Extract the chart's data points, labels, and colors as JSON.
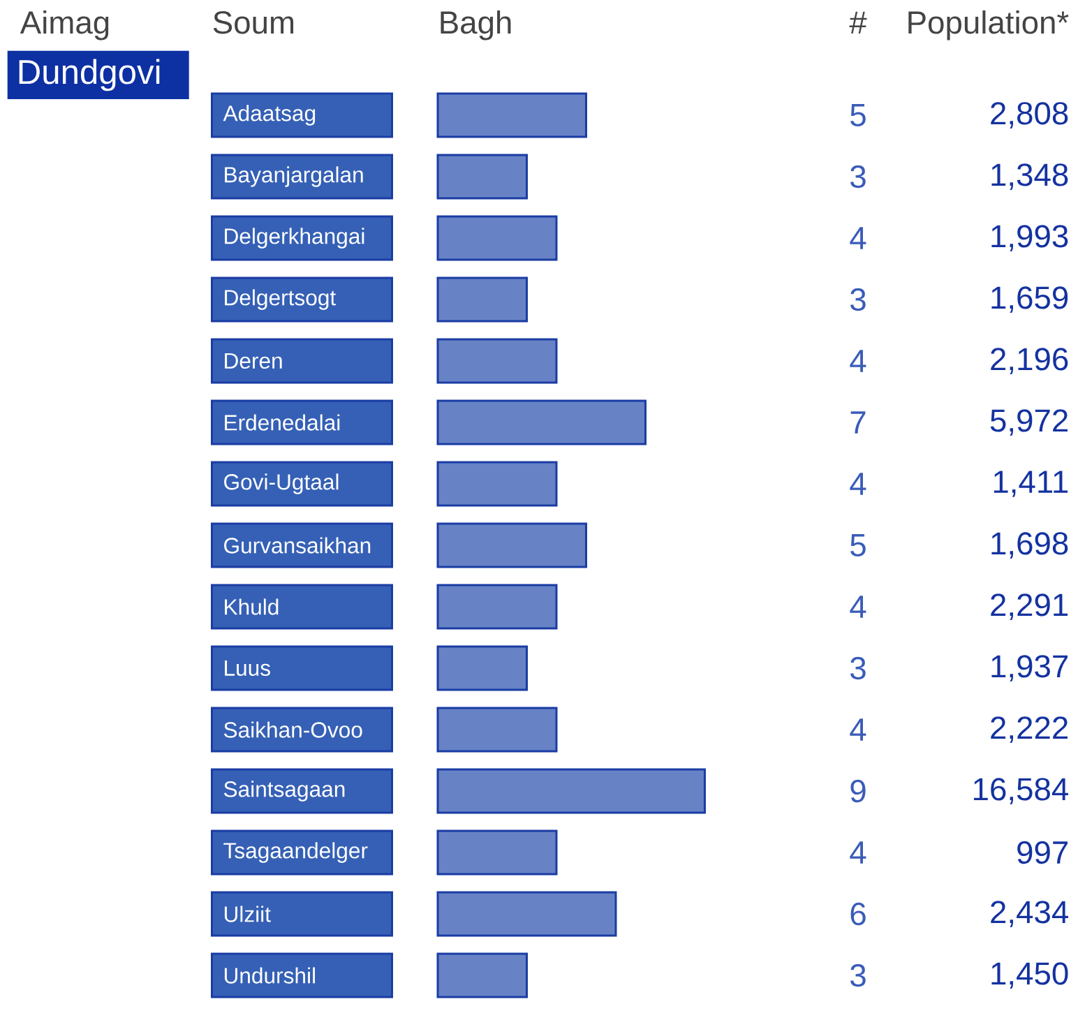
{
  "chart_data": [
    {
      "type": "bar",
      "orientation": "horizontal",
      "title": "Dundgovi",
      "ylabel": "Soum",
      "xlabel": "Bagh",
      "annotations": [
        "Aimag",
        "#"
      ],
      "categories": [
        "Adaatsag",
        "Bayanjargalan",
        "Delgerkhangai",
        "Delgertsogt",
        "Deren",
        "Erdenedalai",
        "Govi-Ugtaal",
        "Gurvansaikhan",
        "Khuld",
        "Luus",
        "Saikhan-Ovoo",
        "Saintsagaan",
        "Tsagaandelger",
        "Ulziit",
        "Undurshil"
      ],
      "values": [
        5,
        3,
        4,
        3,
        4,
        7,
        4,
        5,
        4,
        3,
        4,
        9,
        4,
        6,
        3
      ],
      "color": "#6783c6",
      "data_labels": true
    },
    {
      "type": "other",
      "title": "Population*",
      "values": [
        2808,
        1348,
        1993,
        1659,
        2196,
        5972,
        1411,
        1698,
        2291,
        1937,
        2222,
        16584,
        997,
        2434,
        1450
      ],
      "value_labels": [
        "2,808",
        "1,348",
        "1,993",
        "1,659",
        "2,196",
        "5,972",
        "1,411",
        "1,698",
        "2,291",
        "1,937",
        "2,222",
        "16,584",
        "997",
        "2,434",
        "1,450"
      ]
    }
  ]
}
